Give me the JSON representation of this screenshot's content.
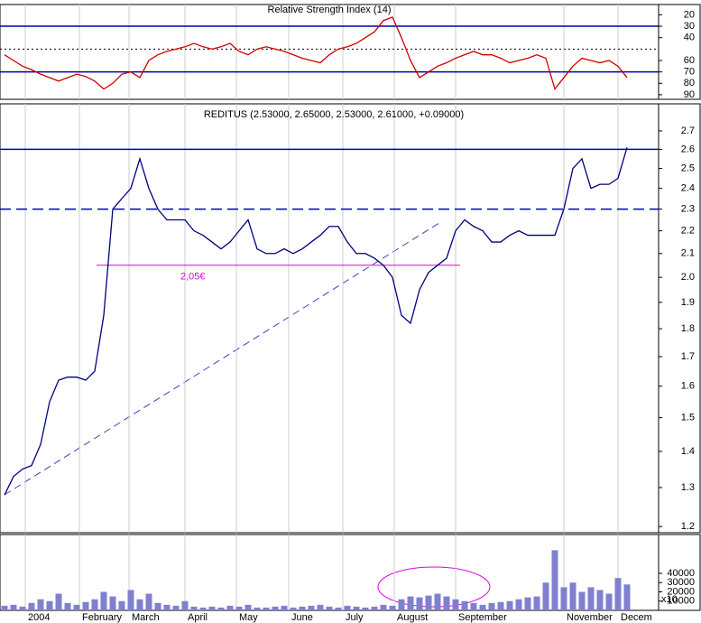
{
  "chart_data": [
    {
      "type": "line",
      "title": "Relative Strength Index (14)",
      "color": "#d00000",
      "values": [
        55,
        60,
        65,
        68,
        72,
        75,
        78,
        75,
        72,
        74,
        78,
        85,
        80,
        72,
        70,
        75,
        60,
        55,
        52,
        50,
        48,
        45,
        48,
        50,
        48,
        45,
        52,
        55,
        50,
        48,
        50,
        52,
        55,
        58,
        60,
        62,
        55,
        50,
        48,
        45,
        40,
        35,
        25,
        22,
        40,
        60,
        75,
        70,
        65,
        62,
        58,
        55,
        52,
        55,
        55,
        58,
        62,
        60,
        58,
        55,
        58,
        85,
        75,
        65,
        58,
        60,
        62,
        60,
        65,
        75
      ],
      "ylim": [
        94,
        11
      ],
      "yticks": [
        90,
        80,
        70,
        60,
        40,
        30,
        20
      ],
      "hlines": [
        {
          "value": 70,
          "style": "solid",
          "color": "#0000aa"
        },
        {
          "value": 50,
          "style": "dotted",
          "color": "#000000"
        },
        {
          "value": 30,
          "style": "solid",
          "color": "#0000aa"
        }
      ]
    },
    {
      "type": "line",
      "title": "REDITUS (2.53000, 2.65000, 2.53000, 2.61000, +0.09000)",
      "color": "#000080",
      "log_scale": true,
      "values": [
        1.28,
        1.33,
        1.35,
        1.36,
        1.42,
        1.55,
        1.62,
        1.63,
        1.63,
        1.62,
        1.65,
        1.85,
        2.3,
        2.35,
        2.4,
        2.55,
        2.4,
        2.3,
        2.25,
        2.25,
        2.25,
        2.2,
        2.18,
        2.15,
        2.12,
        2.15,
        2.2,
        2.25,
        2.12,
        2.1,
        2.1,
        2.12,
        2.1,
        2.12,
        2.15,
        2.18,
        2.22,
        2.22,
        2.15,
        2.1,
        2.1,
        2.08,
        2.05,
        2.0,
        1.85,
        1.82,
        1.95,
        2.02,
        2.05,
        2.08,
        2.2,
        2.25,
        2.22,
        2.2,
        2.15,
        2.15,
        2.18,
        2.2,
        2.18,
        2.18,
        2.18,
        2.18,
        2.3,
        2.5,
        2.55,
        2.4,
        2.42,
        2.42,
        2.45,
        2.61
      ],
      "ylim": [
        1.185,
        2.854
      ],
      "yticks": [
        2.7,
        2.6,
        2.5,
        2.4,
        2.3,
        2.2,
        2.1,
        {
          "value": 2,
          "label": "2.0"
        },
        1.9,
        1.8,
        1.7,
        1.6,
        1.5,
        1.4,
        1.3,
        1.2
      ],
      "hlines": [
        {
          "value": 2.6,
          "style": "solid",
          "color": "#0000cc"
        },
        {
          "value": 2.3,
          "style": "dashed",
          "color": "#0000cc"
        }
      ],
      "support": {
        "value": 2.05,
        "label": "2,05€",
        "color": "#e000e0"
      }
    },
    {
      "type": "bar",
      "color": "#8080d0",
      "unit_label": "x10",
      "values": [
        5000,
        6000,
        4000,
        8000,
        12000,
        10000,
        18000,
        8000,
        6000,
        9000,
        12000,
        20000,
        15000,
        10000,
        22000,
        12000,
        18000,
        8000,
        6000,
        5000,
        10000,
        4000,
        3000,
        4000,
        3000,
        5000,
        4000,
        6000,
        3000,
        3000,
        4000,
        5000,
        3000,
        4000,
        5000,
        6000,
        4000,
        3000,
        5000,
        4000,
        3000,
        4000,
        6000,
        5000,
        12000,
        15000,
        14000,
        16000,
        18000,
        15000,
        12000,
        10000,
        8000,
        6000,
        8000,
        9000,
        10000,
        12000,
        14000,
        15000,
        30000,
        65000,
        25000,
        30000,
        20000,
        25000,
        22000,
        18000,
        35000,
        28000
      ],
      "ylim": [
        0,
        82000
      ],
      "yticks": [
        40000,
        30000,
        20000,
        10000
      ],
      "xticks": [
        {
          "value": 2.3,
          "label": "2004"
        },
        {
          "value": 8.3,
          "label": "February"
        },
        {
          "value": 13.8,
          "label": "March"
        },
        {
          "value": 20,
          "label": "April"
        },
        {
          "value": 25.7,
          "label": "May"
        },
        {
          "value": 31.5,
          "label": "June"
        },
        {
          "value": 37.5,
          "label": "July"
        },
        {
          "value": 43.2,
          "label": "August"
        },
        {
          "value": 50,
          "label": "September"
        },
        {
          "value": 62,
          "label": "November"
        },
        {
          "value": 68,
          "label": "Decem"
        }
      ]
    }
  ]
}
